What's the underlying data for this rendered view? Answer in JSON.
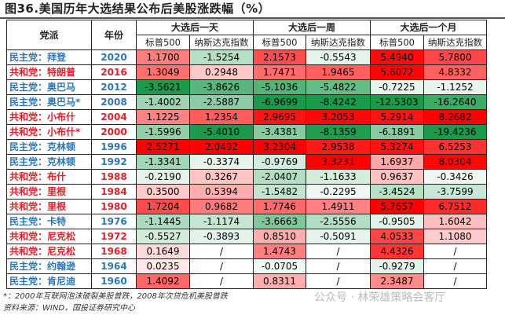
{
  "title": "图36.美国历年大选结果公布后美股涨跌幅（%）",
  "headers": {
    "party": "党派",
    "year": "年份",
    "groups": [
      "大选后一天",
      "大选后一周",
      "大选后一个月"
    ],
    "sub": [
      "标普500",
      "纳斯达克指数",
      "标普500",
      "纳斯达克指数",
      "标普500",
      "纳斯达克指数"
    ]
  },
  "rows": [
    {
      "party": "民主党：拜登",
      "side": "dem",
      "year": "2020",
      "values": [
        "1.1700",
        "-1.5254",
        "2.1573",
        "-0.5543",
        "5.4940",
        "5.7800"
      ]
    },
    {
      "party": "共和党：特朗普",
      "side": "rep",
      "year": "2016",
      "values": [
        "1.3049",
        "0.2948",
        "1.7471",
        "1.9465",
        "5.6072",
        "4.8332"
      ]
    },
    {
      "party": "民主党：奥巴马",
      "side": "dem",
      "year": "2012",
      "values": [
        "-3.5621",
        "-3.8626",
        "-5.1036",
        "-5.4822",
        "-0.7225",
        "-1.1252"
      ]
    },
    {
      "party": "民主党：奥巴马*",
      "side": "dem",
      "year": "2008",
      "values": [
        "-1.4002",
        "-2.5887",
        "-6.9699",
        "-8.4242",
        "-12.5303",
        "-16.2640"
      ]
    },
    {
      "party": "共和党：小布什",
      "side": "rep",
      "year": "2004",
      "values": [
        "1.1225",
        "1.2354",
        "2.9695",
        "3.2053",
        "5.2914",
        "8.2682"
      ]
    },
    {
      "party": "共和党：小布什*",
      "side": "rep",
      "year": "2000",
      "values": [
        "-1.5996",
        "-5.4010",
        "-3.4381",
        "-8.1359",
        "-6.1891",
        "-19.4236"
      ]
    },
    {
      "party": "民主党：克林顿",
      "side": "dem",
      "year": "1996",
      "values": [
        "2.5271",
        "2.0492",
        "3.2304",
        "2.9538",
        "5.3274",
        "6.5253"
      ]
    },
    {
      "party": "民主党：克林顿",
      "side": "dem",
      "year": "1992",
      "values": [
        "-1.3341",
        "-0.3374",
        "-0.9769",
        "3.3231",
        "1.6937",
        "8.0304"
      ]
    },
    {
      "party": "共和党：布什",
      "side": "rep",
      "year": "1988",
      "values": [
        "-0.2190",
        "0.3267",
        "-2.0407",
        "-1.1633",
        "0.9637",
        "-0.3426"
      ]
    },
    {
      "party": "共和党：里根",
      "side": "rep",
      "year": "1984",
      "values": [
        "0.3500",
        "0.5394",
        "-1.5482",
        "-0.2295",
        "-3.4524",
        "-3.7599"
      ]
    },
    {
      "party": "共和党：里根",
      "side": "rep",
      "year": "1980",
      "values": [
        "1.7204",
        "0.9682",
        "1.7746",
        "1.4911",
        "5.7657",
        "6.7512"
      ]
    },
    {
      "party": "民主党：卡特",
      "side": "dem",
      "year": "1976",
      "values": [
        "-1.1445",
        "-1.1174",
        "-3.6663",
        "-2.5556",
        "-0.9505",
        "1.6042"
      ]
    },
    {
      "party": "共和党：尼克松",
      "side": "rep",
      "year": "1972",
      "values": [
        "-0.5527",
        "-0.3893",
        "0.8510",
        "-0.5091",
        "4.0533",
        "1.1080"
      ]
    },
    {
      "party": "共和党：尼克松",
      "side": "rep",
      "year": "1968",
      "values": [
        "0.1649",
        "/",
        "1.4743",
        "/",
        "4.4326",
        "/"
      ]
    },
    {
      "party": "民主党：约翰逊",
      "side": "dem",
      "year": "1964",
      "values": [
        "0.0235",
        "/",
        "-0.0705",
        "/",
        "-0.9279",
        "/"
      ]
    },
    {
      "party": "民主党：肯尼迪",
      "side": "dem",
      "year": "1960",
      "values": [
        "1.4092",
        "/",
        "0.8311",
        "/",
        "2.3487",
        "/"
      ]
    }
  ],
  "footnote": "*：2000年互联网泡沫破裂美股普跌，2008年次贷危机美股普跌",
  "source": "资料来源：WIND，国投证券研究中心",
  "watermark": "公众号 · 林荣雄策略会客厅",
  "colors": {
    "dem": "#2e75b6",
    "rep": "#e0202a",
    "positive": "#ff0000",
    "negative": "#1a9a4a"
  }
}
